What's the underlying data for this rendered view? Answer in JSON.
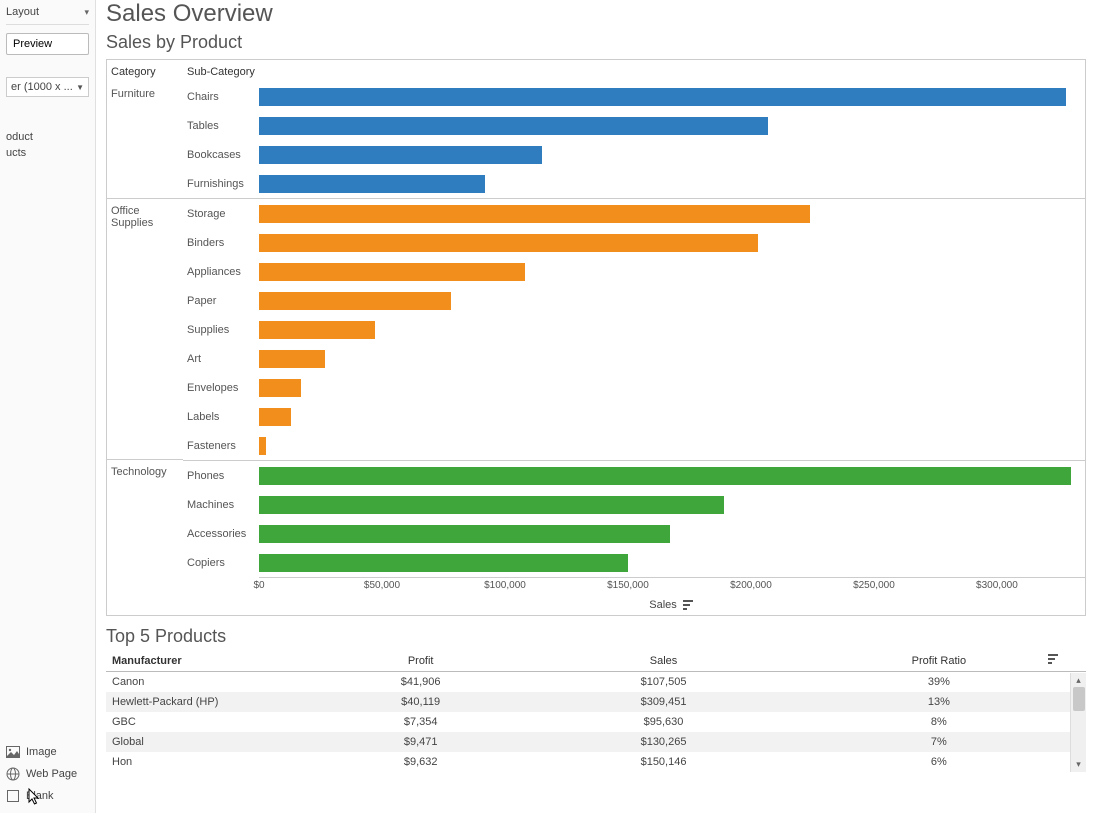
{
  "left_panel": {
    "layout_label": "Layout",
    "preview_label": "Preview",
    "size_label": "er (1000 x ...",
    "clipped_items": [
      "oduct",
      "ucts"
    ],
    "objects": [
      {
        "icon": "image",
        "label": "Image"
      },
      {
        "icon": "globe",
        "label": "Web Page"
      },
      {
        "icon": "blank",
        "label": "Blank"
      }
    ]
  },
  "dashboard": {
    "title": "Sales Overview",
    "chart_title": "Sales by Product",
    "top5_title": "Top 5 Products"
  },
  "chart": {
    "headers": {
      "category": "Category",
      "subcategory": "Sub-Category"
    },
    "axis_label": "Sales",
    "x_max": 335000,
    "ticks": [
      {
        "v": 0,
        "label": "$0"
      },
      {
        "v": 50000,
        "label": "$50,000"
      },
      {
        "v": 100000,
        "label": "$100,000"
      },
      {
        "v": 150000,
        "label": "$150,000"
      },
      {
        "v": 200000,
        "label": "$200,000"
      },
      {
        "v": 250000,
        "label": "$250,000"
      },
      {
        "v": 300000,
        "label": "$300,000"
      }
    ],
    "colors": {
      "Furniture": "#2f7cbf",
      "Office Supplies": "#f28e1c",
      "Technology": "#3ea63a"
    },
    "groups": [
      {
        "category": "Furniture",
        "rows": [
          {
            "sub": "Chairs",
            "value": 328000
          },
          {
            "sub": "Tables",
            "value": 207000
          },
          {
            "sub": "Bookcases",
            "value": 115000
          },
          {
            "sub": "Furnishings",
            "value": 92000
          }
        ]
      },
      {
        "category": "Office Supplies",
        "rows": [
          {
            "sub": "Storage",
            "value": 224000
          },
          {
            "sub": "Binders",
            "value": 203000
          },
          {
            "sub": "Appliances",
            "value": 108000
          },
          {
            "sub": "Paper",
            "value": 78000
          },
          {
            "sub": "Supplies",
            "value": 47000
          },
          {
            "sub": "Art",
            "value": 27000
          },
          {
            "sub": "Envelopes",
            "value": 17000
          },
          {
            "sub": "Labels",
            "value": 13000
          },
          {
            "sub": "Fasteners",
            "value": 3000
          }
        ]
      },
      {
        "category": "Technology",
        "rows": [
          {
            "sub": "Phones",
            "value": 330000
          },
          {
            "sub": "Machines",
            "value": 189000
          },
          {
            "sub": "Accessories",
            "value": 167000
          },
          {
            "sub": "Copiers",
            "value": 150000
          }
        ]
      }
    ]
  },
  "table": {
    "columns": [
      "Manufacturer",
      "Profit",
      "Sales",
      "Profit Ratio"
    ],
    "rows": [
      [
        "Canon",
        "$41,906",
        "$107,505",
        "39%"
      ],
      [
        "Hewlett-Packard (HP)",
        "$40,119",
        "$309,451",
        "13%"
      ],
      [
        "GBC",
        "$7,354",
        "$95,630",
        "8%"
      ],
      [
        "Global",
        "$9,471",
        "$130,265",
        "7%"
      ],
      [
        "Hon",
        "$9,632",
        "$150,146",
        "6%"
      ]
    ]
  }
}
